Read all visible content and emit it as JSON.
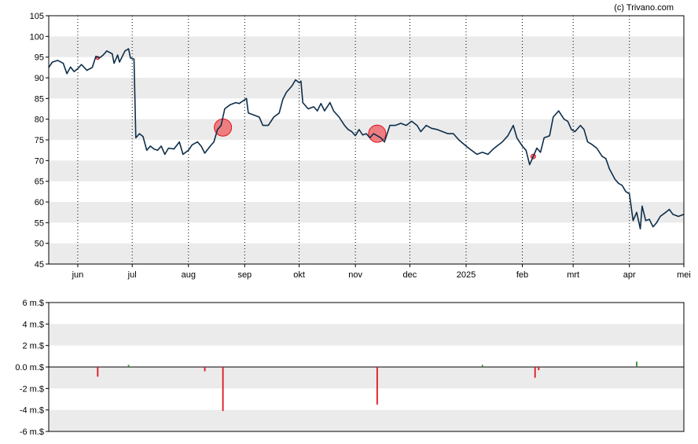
{
  "copyright": "(c) Trivano.com",
  "colors": {
    "line": "#0d2e4a",
    "band": "#ebebeb",
    "sell": "#e0141e",
    "buy": "#2e8b3a",
    "marker_fill": "#ee6a6f"
  },
  "chart_data": [
    {
      "type": "line",
      "name": "price",
      "ylim": [
        45,
        105
      ],
      "y_ticks": [
        "45",
        "50",
        "55",
        "60",
        "65",
        "70",
        "75",
        "80",
        "85",
        "90",
        "95",
        "100",
        "105"
      ],
      "x_range": [
        "2024-05-16",
        "2025-05-01"
      ],
      "x_ticks": [
        {
          "label": "jun",
          "date": "2024-06-01"
        },
        {
          "label": "jul",
          "date": "2024-07-01"
        },
        {
          "label": "aug",
          "date": "2024-08-01"
        },
        {
          "label": "sep",
          "date": "2024-09-01"
        },
        {
          "label": "okt",
          "date": "2024-10-01"
        },
        {
          "label": "nov",
          "date": "2024-11-01"
        },
        {
          "label": "dec",
          "date": "2024-12-01"
        },
        {
          "label": "2025",
          "date": "2025-01-01"
        },
        {
          "label": "feb",
          "date": "2025-02-01"
        },
        {
          "label": "mrt",
          "date": "2025-03-01"
        },
        {
          "label": "apr",
          "date": "2025-04-01"
        },
        {
          "label": "mei",
          "date": "2025-05-01"
        }
      ],
      "grid": "alternating horizontal bands, dotted vertical month lines",
      "series": [
        {
          "points": [
            [
              "2024-05-16",
              92.5
            ],
            [
              "2024-05-18",
              93.8
            ],
            [
              "2024-05-21",
              94.2
            ],
            [
              "2024-05-24",
              93.5
            ],
            [
              "2024-05-26",
              91.0
            ],
            [
              "2024-05-28",
              92.6
            ],
            [
              "2024-05-30",
              91.5
            ],
            [
              "2024-06-01",
              92.2
            ],
            [
              "2024-06-03",
              93.2
            ],
            [
              "2024-06-06",
              91.8
            ],
            [
              "2024-06-09",
              92.5
            ],
            [
              "2024-06-11",
              95.2
            ],
            [
              "2024-06-13",
              94.8
            ],
            [
              "2024-06-15",
              95.5
            ],
            [
              "2024-06-17",
              96.5
            ],
            [
              "2024-06-20",
              95.8
            ],
            [
              "2024-06-21",
              93.5
            ],
            [
              "2024-06-23",
              95.5
            ],
            [
              "2024-06-24",
              93.8
            ],
            [
              "2024-06-27",
              96.5
            ],
            [
              "2024-06-29",
              97.0
            ],
            [
              "2024-06-30",
              94.8
            ],
            [
              "2024-07-02",
              94.5
            ],
            [
              "2024-07-03",
              75.5
            ],
            [
              "2024-07-05",
              76.5
            ],
            [
              "2024-07-07",
              75.8
            ],
            [
              "2024-07-09",
              72.5
            ],
            [
              "2024-07-11",
              73.5
            ],
            [
              "2024-07-13",
              72.8
            ],
            [
              "2024-07-15",
              72.5
            ],
            [
              "2024-07-17",
              73.5
            ],
            [
              "2024-07-19",
              71.5
            ],
            [
              "2024-07-21",
              73.0
            ],
            [
              "2024-07-24",
              72.8
            ],
            [
              "2024-07-27",
              74.5
            ],
            [
              "2024-07-29",
              71.5
            ],
            [
              "2024-08-01",
              72.5
            ],
            [
              "2024-08-03",
              73.8
            ],
            [
              "2024-08-06",
              74.5
            ],
            [
              "2024-08-08",
              73.5
            ],
            [
              "2024-08-10",
              71.8
            ],
            [
              "2024-08-13",
              73.5
            ],
            [
              "2024-08-15",
              74.5
            ],
            [
              "2024-08-17",
              77.5
            ],
            [
              "2024-08-19",
              78.5
            ],
            [
              "2024-08-21",
              82.5
            ],
            [
              "2024-08-24",
              83.5
            ],
            [
              "2024-08-27",
              84.0
            ],
            [
              "2024-08-29",
              83.8
            ],
            [
              "2024-09-02",
              85.0
            ],
            [
              "2024-09-03",
              81.5
            ],
            [
              "2024-09-06",
              81.0
            ],
            [
              "2024-09-09",
              80.5
            ],
            [
              "2024-09-11",
              78.5
            ],
            [
              "2024-09-14",
              78.5
            ],
            [
              "2024-09-17",
              80.5
            ],
            [
              "2024-09-20",
              81.5
            ],
            [
              "2024-09-22",
              84.8
            ],
            [
              "2024-09-24",
              86.5
            ],
            [
              "2024-09-27",
              88.0
            ],
            [
              "2024-09-29",
              89.5
            ],
            [
              "2024-10-01",
              88.8
            ],
            [
              "2024-10-02",
              89.2
            ],
            [
              "2024-10-03",
              84.0
            ],
            [
              "2024-10-06",
              82.5
            ],
            [
              "2024-10-09",
              83.0
            ],
            [
              "2024-10-11",
              82.0
            ],
            [
              "2024-10-13",
              83.8
            ],
            [
              "2024-10-15",
              82.0
            ],
            [
              "2024-10-18",
              84.0
            ],
            [
              "2024-10-20",
              82.0
            ],
            [
              "2024-10-23",
              80.5
            ],
            [
              "2024-10-26",
              78.5
            ],
            [
              "2024-10-28",
              77.5
            ],
            [
              "2024-10-30",
              77.0
            ],
            [
              "2024-11-01",
              76.0
            ],
            [
              "2024-11-03",
              77.5
            ],
            [
              "2024-11-05",
              76.2
            ],
            [
              "2024-11-07",
              76.5
            ],
            [
              "2024-11-09",
              75.5
            ],
            [
              "2024-11-11",
              76.5
            ],
            [
              "2024-11-13",
              76.0
            ],
            [
              "2024-11-15",
              75.5
            ],
            [
              "2024-11-17",
              74.5
            ],
            [
              "2024-11-20",
              78.5
            ],
            [
              "2024-11-23",
              78.5
            ],
            [
              "2024-11-26",
              79.0
            ],
            [
              "2024-11-29",
              78.5
            ],
            [
              "2024-12-02",
              79.5
            ],
            [
              "2024-12-05",
              78.5
            ],
            [
              "2024-12-07",
              77.0
            ],
            [
              "2024-12-10",
              78.5
            ],
            [
              "2024-12-13",
              77.8
            ],
            [
              "2024-12-16",
              77.5
            ],
            [
              "2024-12-19",
              77.0
            ],
            [
              "2024-12-22",
              76.5
            ],
            [
              "2024-12-25",
              76.5
            ],
            [
              "2024-12-28",
              75.0
            ],
            [
              "2025-01-01",
              73.5
            ],
            [
              "2025-01-04",
              72.5
            ],
            [
              "2025-01-07",
              71.5
            ],
            [
              "2025-01-10",
              72.0
            ],
            [
              "2025-01-13",
              71.5
            ],
            [
              "2025-01-16",
              72.8
            ],
            [
              "2025-01-18",
              73.5
            ],
            [
              "2025-01-21",
              74.5
            ],
            [
              "2025-01-24",
              76.0
            ],
            [
              "2025-01-27",
              78.5
            ],
            [
              "2025-01-29",
              75.5
            ],
            [
              "2025-02-01",
              73.5
            ],
            [
              "2025-02-03",
              72.5
            ],
            [
              "2025-02-05",
              69.0
            ],
            [
              "2025-02-07",
              71.0
            ],
            [
              "2025-02-09",
              73.0
            ],
            [
              "2025-02-11",
              72.0
            ],
            [
              "2025-02-13",
              75.5
            ],
            [
              "2025-02-16",
              76.0
            ],
            [
              "2025-02-18",
              80.5
            ],
            [
              "2025-02-21",
              82.0
            ],
            [
              "2025-02-24",
              80.0
            ],
            [
              "2025-02-26",
              79.5
            ],
            [
              "2025-02-28",
              77.5
            ],
            [
              "2025-03-02",
              77.0
            ],
            [
              "2025-03-05",
              78.5
            ],
            [
              "2025-03-07",
              77.5
            ],
            [
              "2025-03-09",
              74.5
            ],
            [
              "2025-03-11",
              74.0
            ],
            [
              "2025-03-14",
              73.0
            ],
            [
              "2025-03-17",
              71.0
            ],
            [
              "2025-03-19",
              70.5
            ],
            [
              "2025-03-21",
              68.0
            ],
            [
              "2025-03-24",
              65.5
            ],
            [
              "2025-03-26",
              64.5
            ],
            [
              "2025-03-28",
              64.0
            ],
            [
              "2025-03-30",
              62.5
            ],
            [
              "2025-04-01",
              62.0
            ],
            [
              "2025-04-03",
              55.5
            ],
            [
              "2025-04-05",
              57.5
            ],
            [
              "2025-04-07",
              53.5
            ],
            [
              "2025-04-08",
              59.0
            ],
            [
              "2025-04-10",
              55.5
            ],
            [
              "2025-04-12",
              55.8
            ],
            [
              "2025-04-14",
              54.0
            ],
            [
              "2025-04-16",
              55.0
            ],
            [
              "2025-04-18",
              56.5
            ],
            [
              "2025-04-21",
              57.5
            ],
            [
              "2025-04-23",
              58.2
            ],
            [
              "2025-04-25",
              57.0
            ],
            [
              "2025-04-28",
              56.5
            ],
            [
              "2025-05-01",
              57.0
            ]
          ]
        }
      ],
      "markers": [
        {
          "date": "2024-06-12",
          "value": 94.8,
          "size": "tiny"
        },
        {
          "date": "2024-08-20",
          "value": 78.0,
          "size": "large"
        },
        {
          "date": "2024-11-13",
          "value": 76.5,
          "size": "large"
        },
        {
          "date": "2025-02-07",
          "value": 71.0,
          "size": "small"
        }
      ]
    },
    {
      "type": "bar",
      "name": "transactions",
      "ylim": [
        -6,
        6
      ],
      "y_ticks": [
        "-6 m.$",
        "-4 m.$",
        "-2 m.$",
        "0.0 m.$",
        "2 m.$",
        "4 m.$",
        "6 m.$"
      ],
      "bars": [
        {
          "date": "2024-06-12",
          "value": -0.9
        },
        {
          "date": "2024-06-29",
          "value": 0.2
        },
        {
          "date": "2024-08-10",
          "value": -0.4
        },
        {
          "date": "2024-08-20",
          "value": -4.1
        },
        {
          "date": "2024-11-13",
          "value": -3.5
        },
        {
          "date": "2025-01-10",
          "value": 0.2
        },
        {
          "date": "2025-02-08",
          "value": -1.0
        },
        {
          "date": "2025-02-10",
          "value": -0.3
        },
        {
          "date": "2025-04-05",
          "value": 0.5
        }
      ]
    }
  ]
}
